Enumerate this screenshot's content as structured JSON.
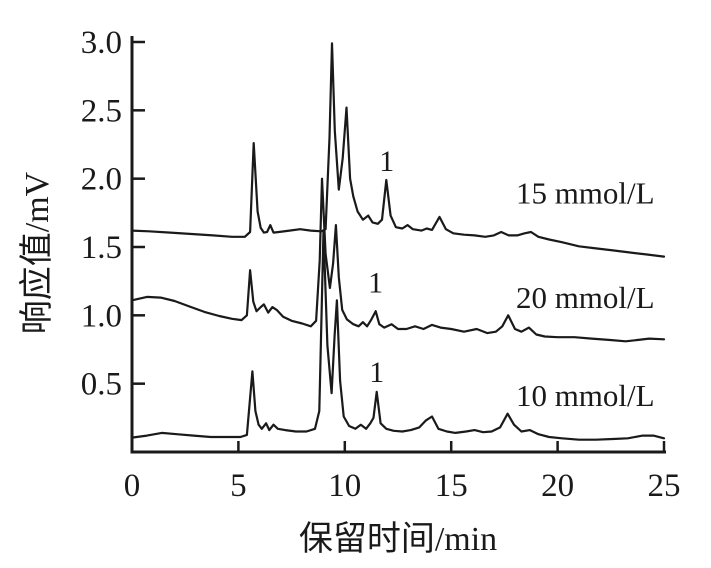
{
  "figure": {
    "x_axis_label": "保留时间/min",
    "y_axis_label": "响应值/mV"
  },
  "chart_data": {
    "type": "line",
    "title": "",
    "xlabel": "保留时间/min",
    "ylabel": "响应值/mV",
    "xlim": [
      0,
      25
    ],
    "ylim": [
      0,
      3.0
    ],
    "x_ticks": [
      0,
      5,
      10,
      15,
      20,
      25
    ],
    "y_ticks": [
      0.5,
      1.0,
      1.5,
      2.0,
      2.5,
      3.0
    ],
    "grid": false,
    "legend_position": "none",
    "line_color": "#1a1a1a",
    "axis_color": "#1a1a1a",
    "background_color": "#ffffff",
    "series": [
      {
        "name": "15 mmol/L",
        "points": [
          [
            0,
            1.62
          ],
          [
            0.8,
            1.615
          ],
          [
            1.8,
            1.605
          ],
          [
            2.8,
            1.595
          ],
          [
            3.8,
            1.585
          ],
          [
            4.7,
            1.575
          ],
          [
            5.3,
            1.575
          ],
          [
            5.55,
            1.61
          ],
          [
            5.72,
            2.26
          ],
          [
            5.9,
            1.76
          ],
          [
            6.05,
            1.64
          ],
          [
            6.2,
            1.605
          ],
          [
            6.35,
            1.61
          ],
          [
            6.5,
            1.66
          ],
          [
            6.65,
            1.605
          ],
          [
            6.9,
            1.61
          ],
          [
            7.4,
            1.62
          ],
          [
            7.9,
            1.63
          ],
          [
            8.4,
            1.62
          ],
          [
            8.9,
            1.615
          ],
          [
            9.1,
            1.63
          ],
          [
            9.28,
            2.3
          ],
          [
            9.4,
            2.99
          ],
          [
            9.53,
            2.35
          ],
          [
            9.72,
            1.92
          ],
          [
            9.9,
            2.15
          ],
          [
            10.08,
            2.52
          ],
          [
            10.25,
            2.0
          ],
          [
            10.4,
            1.87
          ],
          [
            10.6,
            1.76
          ],
          [
            10.85,
            1.7
          ],
          [
            11.1,
            1.73
          ],
          [
            11.3,
            1.68
          ],
          [
            11.55,
            1.67
          ],
          [
            11.75,
            1.7
          ],
          [
            11.95,
            1.99
          ],
          [
            12.15,
            1.73
          ],
          [
            12.4,
            1.645
          ],
          [
            12.7,
            1.635
          ],
          [
            12.95,
            1.66
          ],
          [
            13.2,
            1.63
          ],
          [
            13.6,
            1.62
          ],
          [
            13.85,
            1.635
          ],
          [
            14.1,
            1.625
          ],
          [
            14.45,
            1.72
          ],
          [
            14.75,
            1.63
          ],
          [
            15.1,
            1.6
          ],
          [
            15.6,
            1.59
          ],
          [
            16.1,
            1.585
          ],
          [
            16.6,
            1.575
          ],
          [
            17.0,
            1.585
          ],
          [
            17.35,
            1.61
          ],
          [
            17.7,
            1.585
          ],
          [
            18.1,
            1.585
          ],
          [
            18.45,
            1.6
          ],
          [
            18.75,
            1.61
          ],
          [
            19.1,
            1.575
          ],
          [
            19.6,
            1.555
          ],
          [
            20.2,
            1.535
          ],
          [
            21.0,
            1.505
          ],
          [
            21.8,
            1.49
          ],
          [
            22.6,
            1.475
          ],
          [
            23.4,
            1.46
          ],
          [
            24.2,
            1.445
          ],
          [
            25,
            1.43
          ]
        ]
      },
      {
        "name": "20 mmol/L",
        "points": [
          [
            0,
            1.11
          ],
          [
            0.7,
            1.135
          ],
          [
            1.35,
            1.13
          ],
          [
            2.0,
            1.105
          ],
          [
            2.7,
            1.065
          ],
          [
            3.4,
            1.025
          ],
          [
            4.1,
            0.995
          ],
          [
            4.7,
            0.975
          ],
          [
            5.15,
            0.965
          ],
          [
            5.4,
            1.0
          ],
          [
            5.55,
            1.33
          ],
          [
            5.7,
            1.1
          ],
          [
            5.85,
            1.03
          ],
          [
            6.05,
            1.06
          ],
          [
            6.2,
            1.08
          ],
          [
            6.4,
            1.02
          ],
          [
            6.6,
            1.06
          ],
          [
            6.8,
            1.04
          ],
          [
            7.1,
            0.99
          ],
          [
            7.5,
            0.96
          ],
          [
            8.0,
            0.94
          ],
          [
            8.4,
            0.92
          ],
          [
            8.65,
            0.96
          ],
          [
            8.82,
            1.4
          ],
          [
            8.93,
            2.0
          ],
          [
            9.1,
            1.45
          ],
          [
            9.3,
            1.2
          ],
          [
            9.45,
            1.38
          ],
          [
            9.58,
            1.66
          ],
          [
            9.72,
            1.28
          ],
          [
            9.88,
            1.04
          ],
          [
            10.1,
            0.97
          ],
          [
            10.4,
            0.935
          ],
          [
            10.65,
            0.92
          ],
          [
            10.85,
            0.95
          ],
          [
            11.05,
            0.92
          ],
          [
            11.25,
            0.97
          ],
          [
            11.45,
            1.03
          ],
          [
            11.62,
            0.935
          ],
          [
            11.85,
            0.91
          ],
          [
            12.2,
            0.935
          ],
          [
            12.5,
            0.9
          ],
          [
            12.9,
            0.9
          ],
          [
            13.3,
            0.92
          ],
          [
            13.7,
            0.9
          ],
          [
            14.1,
            0.93
          ],
          [
            14.5,
            0.91
          ],
          [
            15.0,
            0.9
          ],
          [
            15.6,
            0.88
          ],
          [
            16.2,
            0.9
          ],
          [
            16.7,
            0.87
          ],
          [
            17.1,
            0.88
          ],
          [
            17.4,
            0.92
          ],
          [
            17.68,
            1.0
          ],
          [
            18.0,
            0.9
          ],
          [
            18.3,
            0.88
          ],
          [
            18.65,
            0.91
          ],
          [
            19.0,
            0.86
          ],
          [
            19.4,
            0.845
          ],
          [
            20.0,
            0.84
          ],
          [
            20.8,
            0.84
          ],
          [
            21.6,
            0.83
          ],
          [
            22.4,
            0.82
          ],
          [
            23.2,
            0.81
          ],
          [
            23.8,
            0.82
          ],
          [
            24.3,
            0.83
          ],
          [
            25,
            0.825
          ]
        ]
      },
      {
        "name": "10 mmol/L",
        "points": [
          [
            0,
            0.105
          ],
          [
            0.7,
            0.12
          ],
          [
            1.4,
            0.14
          ],
          [
            2.1,
            0.13
          ],
          [
            2.9,
            0.12
          ],
          [
            3.7,
            0.11
          ],
          [
            4.5,
            0.11
          ],
          [
            5.1,
            0.11
          ],
          [
            5.4,
            0.125
          ],
          [
            5.66,
            0.59
          ],
          [
            5.8,
            0.3
          ],
          [
            5.95,
            0.2
          ],
          [
            6.1,
            0.17
          ],
          [
            6.3,
            0.21
          ],
          [
            6.45,
            0.16
          ],
          [
            6.65,
            0.2
          ],
          [
            6.85,
            0.17
          ],
          [
            7.2,
            0.16
          ],
          [
            7.7,
            0.15
          ],
          [
            8.2,
            0.15
          ],
          [
            8.6,
            0.17
          ],
          [
            8.8,
            0.3
          ],
          [
            9.0,
            1.62
          ],
          [
            9.18,
            0.78
          ],
          [
            9.38,
            0.43
          ],
          [
            9.52,
            0.85
          ],
          [
            9.63,
            1.11
          ],
          [
            9.78,
            0.52
          ],
          [
            9.95,
            0.26
          ],
          [
            10.2,
            0.19
          ],
          [
            10.5,
            0.17
          ],
          [
            10.75,
            0.2
          ],
          [
            11.0,
            0.17
          ],
          [
            11.2,
            0.21
          ],
          [
            11.35,
            0.25
          ],
          [
            11.5,
            0.44
          ],
          [
            11.68,
            0.21
          ],
          [
            11.95,
            0.17
          ],
          [
            12.3,
            0.155
          ],
          [
            12.7,
            0.15
          ],
          [
            13.1,
            0.16
          ],
          [
            13.5,
            0.18
          ],
          [
            13.8,
            0.23
          ],
          [
            14.1,
            0.26
          ],
          [
            14.4,
            0.17
          ],
          [
            14.8,
            0.15
          ],
          [
            15.2,
            0.14
          ],
          [
            15.7,
            0.15
          ],
          [
            16.1,
            0.16
          ],
          [
            16.5,
            0.145
          ],
          [
            16.9,
            0.15
          ],
          [
            17.3,
            0.18
          ],
          [
            17.65,
            0.28
          ],
          [
            17.95,
            0.2
          ],
          [
            18.3,
            0.15
          ],
          [
            18.7,
            0.16
          ],
          [
            19.1,
            0.13
          ],
          [
            19.6,
            0.11
          ],
          [
            20.2,
            0.1
          ],
          [
            21.0,
            0.09
          ],
          [
            21.8,
            0.09
          ],
          [
            22.6,
            0.095
          ],
          [
            23.3,
            0.1
          ],
          [
            24.0,
            0.12
          ],
          [
            24.5,
            0.12
          ],
          [
            25,
            0.1
          ]
        ]
      }
    ],
    "annotations": [
      {
        "text": "1",
        "x": 11.97,
        "y": 2.13,
        "kind": "peak",
        "series": "15 mmol/L"
      },
      {
        "text": "1",
        "x": 11.45,
        "y": 1.24,
        "kind": "peak",
        "series": "20 mmol/L"
      },
      {
        "text": "1",
        "x": 11.5,
        "y": 0.585,
        "kind": "peak",
        "series": "10 mmol/L"
      },
      {
        "text": "15 mmol/L",
        "x": 21.3,
        "y": 1.89,
        "kind": "series"
      },
      {
        "text": "20 mmol/L",
        "x": 21.3,
        "y": 1.127,
        "kind": "series"
      },
      {
        "text": "10 mmol/L",
        "x": 21.3,
        "y": 0.41,
        "kind": "series"
      }
    ]
  }
}
